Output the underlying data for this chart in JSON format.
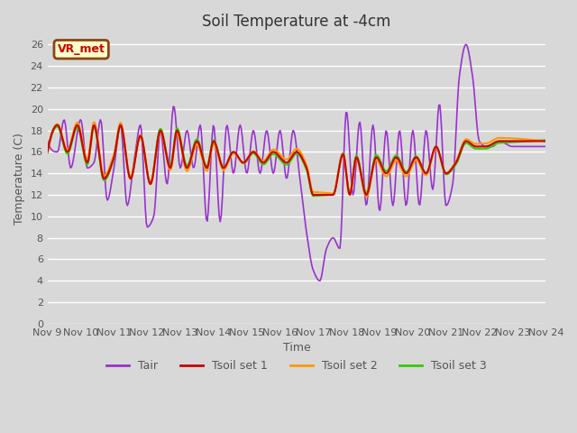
{
  "title": "Soil Temperature at -4cm",
  "xlabel": "Time",
  "ylabel": "Temperature (C)",
  "ylim": [
    0,
    27
  ],
  "yticks": [
    0,
    2,
    4,
    6,
    8,
    10,
    12,
    14,
    16,
    18,
    20,
    22,
    24,
    26
  ],
  "xtick_labels": [
    "Nov 9",
    "Nov 10",
    "Nov 11",
    "Nov 12",
    "Nov 13",
    "Nov 14",
    "Nov 15",
    "Nov 16",
    "Nov 17",
    "Nov 18",
    "Nov 19",
    "Nov 20",
    "Nov 21",
    "Nov 22",
    "Nov 23",
    "Nov 24"
  ],
  "bg_color": "#d8d8d8",
  "plot_bg_color": "#d8d8d8",
  "grid_color": "#ffffff",
  "annotation_text": "VR_met",
  "annotation_bg": "#ffffcc",
  "annotation_border": "#8B4513",
  "colors": {
    "Tair": "#9933cc",
    "Tsoil1": "#cc0000",
    "Tsoil2": "#ff9900",
    "Tsoil3": "#33cc00"
  },
  "font_color": "#555555",
  "title_fontsize": 12,
  "axis_fontsize": 9,
  "tick_fontsize": 8,
  "linewidth_air": 1.2,
  "linewidth_soil": 1.5
}
